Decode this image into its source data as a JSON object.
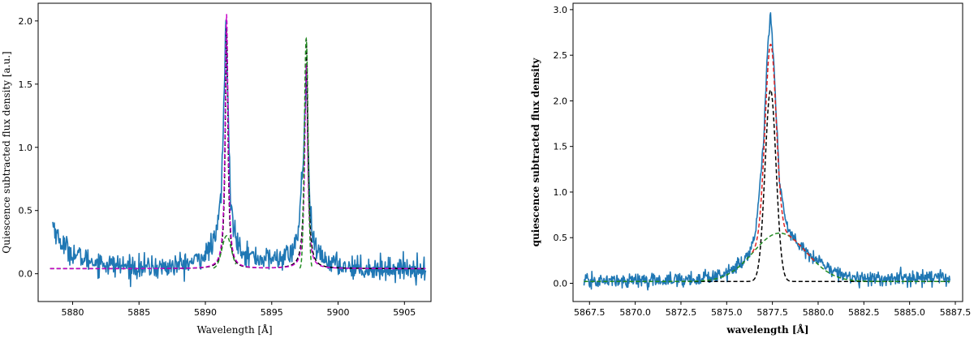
{
  "chart_data": [
    {
      "type": "line",
      "xlabel": "Wavelength [Å]",
      "ylabel": "Quiescence subtracted flux density [a.u.]",
      "xlim": [
        5877.4,
        5907.0
      ],
      "ylim": [
        -0.22,
        2.14
      ],
      "x_ticks": [
        5880,
        5885,
        5890,
        5895,
        5900,
        5905
      ],
      "x_tick_labels": [
        "5880",
        "5885",
        "5890",
        "5895",
        "5900",
        "5905"
      ],
      "y_ticks": [
        0.0,
        0.5,
        1.0,
        1.5,
        2.0
      ],
      "y_tick_labels": [
        "0.0",
        "0.5",
        "1.0",
        "1.5",
        "2.0"
      ],
      "grid": false,
      "series": [
        {
          "color": "#1f77b4",
          "style": "solid",
          "kind": "observed-noisy",
          "x_range": [
            5878.5,
            5906.6
          ],
          "x": [
            5878.5,
            5879.0,
            5880.0,
            5881.0,
            5883.0,
            5885.0,
            5887.0,
            5889.0,
            5890.0,
            5890.8,
            5891.2,
            5891.4,
            5891.55,
            5891.7,
            5891.9,
            5892.3,
            5893.0,
            5894.0,
            5895.5,
            5896.5,
            5897.0,
            5897.4,
            5897.6,
            5897.75,
            5897.9,
            5898.2,
            5898.8,
            5900.0,
            5902.0,
            5904.0,
            5906.6
          ],
          "y": [
            0.4,
            0.26,
            0.16,
            0.11,
            0.07,
            0.05,
            0.05,
            0.09,
            0.15,
            0.28,
            0.65,
            1.35,
            2.02,
            1.35,
            0.55,
            0.28,
            0.16,
            0.12,
            0.12,
            0.16,
            0.32,
            0.95,
            1.62,
            0.95,
            0.45,
            0.22,
            0.12,
            0.07,
            0.04,
            0.04,
            0.04
          ]
        },
        {
          "color": "#000000",
          "style": "dashed",
          "kind": "lorentzian-doublet",
          "baseline": 0.04,
          "peaks": [
            {
              "center": 5891.6,
              "amplitude": 1.9,
              "hwhm": 0.12
            },
            {
              "center": 5897.6,
              "amplitude": 1.82,
              "hwhm": 0.14
            }
          ]
        },
        {
          "color": "#c800c8",
          "style": "dashed",
          "kind": "lorentzian-doublet",
          "baseline": 0.04,
          "peaks": [
            {
              "center": 5891.6,
              "amplitude": 2.01,
              "hwhm": 0.13
            },
            {
              "center": 5897.6,
              "amplitude": 1.62,
              "hwhm": 0.13
            }
          ]
        },
        {
          "color": "#228b22",
          "style": "dashed",
          "kind": "gaussian-local",
          "baseline": 0.04,
          "peaks": [
            {
              "center": 5891.6,
              "amplitude": 0.26,
              "sigma": 0.35,
              "x_range": [
                5890.6,
                5892.3
              ]
            },
            {
              "center": 5897.6,
              "amplitude": 1.82,
              "sigma": 0.14,
              "x_range": [
                5897.1,
                5898.1
              ]
            }
          ]
        }
      ]
    },
    {
      "type": "line",
      "xlabel": "wavelength [Å]",
      "ylabel": "quiescence subtracted flux density",
      "xlim": [
        5866.6,
        5887.9
      ],
      "ylim": [
        -0.2,
        3.07
      ],
      "x_ticks": [
        5867.5,
        5870.0,
        5872.5,
        5875.0,
        5877.5,
        5880.0,
        5882.5,
        5885.0,
        5887.5
      ],
      "x_tick_labels": [
        "5867.5",
        "5870.0",
        "5872.5",
        "5875.0",
        "5877.5",
        "5880.0",
        "5882.5",
        "5885.0",
        "5887.5"
      ],
      "y_ticks": [
        0.0,
        0.5,
        1.0,
        1.5,
        2.0,
        2.5,
        3.0
      ],
      "y_tick_labels": [
        "0.0",
        "0.5",
        "1.0",
        "1.5",
        "2.0",
        "2.5",
        "3.0"
      ],
      "grid": false,
      "series": [
        {
          "color": "#1f77b4",
          "style": "solid",
          "kind": "observed-noisy",
          "x_range": [
            5867.2,
            5887.2
          ],
          "x": [
            5867.2,
            5870.0,
            5873.0,
            5875.0,
            5876.0,
            5876.6,
            5877.0,
            5877.2,
            5877.4,
            5877.6,
            5877.9,
            5878.3,
            5879.0,
            5880.0,
            5881.0,
            5882.0,
            5884.0,
            5887.2
          ],
          "y": [
            0.02,
            0.03,
            0.04,
            0.1,
            0.25,
            0.55,
            1.5,
            2.45,
            2.95,
            2.3,
            1.1,
            0.6,
            0.4,
            0.25,
            0.12,
            0.06,
            0.05,
            0.06
          ]
        },
        {
          "color": "#000000",
          "style": "dashed",
          "kind": "gaussian",
          "baseline": 0.02,
          "peaks": [
            {
              "center": 5877.4,
              "amplitude": 2.1,
              "sigma": 0.3
            }
          ]
        },
        {
          "color": "#228b22",
          "style": "dashed",
          "kind": "gaussian",
          "baseline": 0.02,
          "peaks": [
            {
              "center": 5877.9,
              "amplitude": 0.53,
              "sigma": 1.45
            }
          ]
        },
        {
          "color": "#e02020",
          "style": "dashed",
          "kind": "gaussian-sum",
          "x_range": [
            5876.4,
            5879.8
          ],
          "baseline": 0.02,
          "peaks": [
            {
              "center": 5877.4,
              "amplitude": 2.1,
              "sigma": 0.3
            },
            {
              "center": 5877.9,
              "amplitude": 0.53,
              "sigma": 1.45
            }
          ]
        }
      ]
    }
  ]
}
